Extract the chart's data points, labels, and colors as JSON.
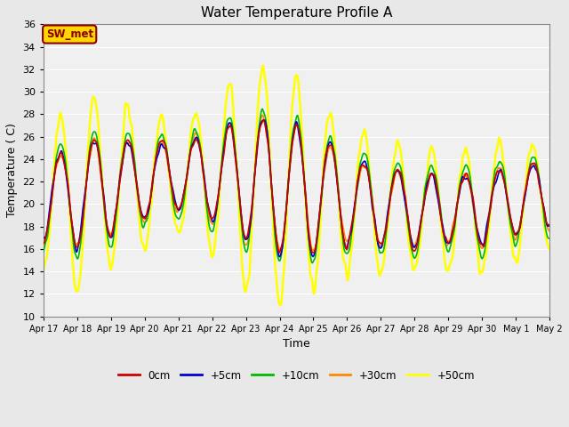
{
  "title": "Water Temperature Profile A",
  "xlabel": "Time",
  "ylabel": "Temperature ( C)",
  "ylim": [
    10,
    36
  ],
  "yticks": [
    10,
    12,
    14,
    16,
    18,
    20,
    22,
    24,
    26,
    28,
    30,
    32,
    34,
    36
  ],
  "x_labels": [
    "Apr 17",
    "Apr 18",
    "Apr 19",
    "Apr 20",
    "Apr 21",
    "Apr 22",
    "Apr 23",
    "Apr 24",
    "Apr 25",
    "Apr 26",
    "Apr 27",
    "Apr 28",
    "Apr 29",
    "Apr 30",
    "May 1",
    "May 2"
  ],
  "annotation_text": "SW_met",
  "annotation_box_color": "#FFD700",
  "annotation_text_color": "#8B0000",
  "lines": {
    "0cm": {
      "color": "#CC0000",
      "lw": 1.2
    },
    "+5cm": {
      "color": "#0000CC",
      "lw": 1.2
    },
    "+10cm": {
      "color": "#00BB00",
      "lw": 1.2
    },
    "+30cm": {
      "color": "#FF8800",
      "lw": 1.2
    },
    "+50cm": {
      "color": "#FFFF00",
      "lw": 1.8
    }
  },
  "legend_labels": [
    "0cm",
    "+5cm",
    "+10cm",
    "+30cm",
    "+50cm"
  ],
  "legend_colors": [
    "#CC0000",
    "#0000CC",
    "#00BB00",
    "#FF8800",
    "#FFFF00"
  ],
  "background_color": "#E8E8E8",
  "plot_bg_color": "#F0F0F0",
  "grid_color": "#FFFFFF"
}
